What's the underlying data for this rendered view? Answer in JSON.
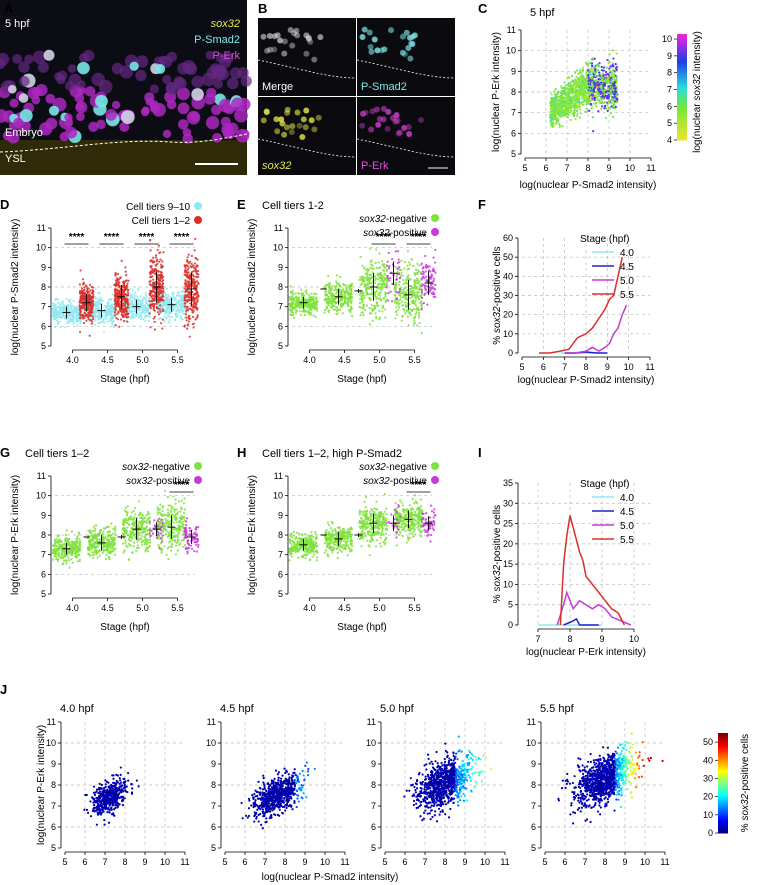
{
  "panels": {
    "A": {
      "letter": "A",
      "stage": "5 hpf",
      "labels": [
        "sox32",
        "P-Smad2",
        "P-Erk"
      ],
      "embryo": "Embryo",
      "ysl": "YSL"
    },
    "B": {
      "letter": "B",
      "labels": [
        "Merge",
        "P-Smad2",
        "sox32",
        "P-Erk"
      ]
    },
    "C": {
      "letter": "C",
      "title": "5 hpf",
      "xlabel": "log(nuclear P-Smad2 intensity)",
      "ylabel": "log(nuclear P-Erk intensity)",
      "colorbar_label": "log(nuclear sox32 intensity)"
    },
    "D": {
      "letter": "D",
      "legend": [
        "Cell tiers 9–10",
        "Cell tiers 1–2"
      ],
      "xlabel": "Stage (hpf)",
      "ylabel": "log(nuclear P-Smad2 intensity)"
    },
    "E": {
      "letter": "E",
      "title": "Cell tiers 1-2",
      "legend": [
        "sox32-negative",
        "sox32-positive"
      ],
      "xlabel": "Stage (hpf)",
      "ylabel": "log(nuclear P-Smad2 intensity)"
    },
    "F": {
      "letter": "F",
      "legend_title": "Stage (hpf)",
      "xlabel": "log(nuclear P-Smad2 intensity)",
      "ylabel": "% sox32-positive cells"
    },
    "G": {
      "letter": "G",
      "title": "Cell tiers 1–2",
      "legend": [
        "sox32-negative",
        "sox32-positive"
      ],
      "xlabel": "Stage (hpf)",
      "ylabel": "log(nuclear P-Erk intensity)"
    },
    "H": {
      "letter": "H",
      "title": "Cell tiers 1–2, high P-Smad2",
      "legend": [
        "sox32-negative",
        "sox32-positive"
      ],
      "xlabel": "Stage (hpf)",
      "ylabel": "log(nuclear P-Erk intensity)"
    },
    "I": {
      "letter": "I",
      "legend_title": "Stage (hpf)",
      "xlabel": "log(nuclear P-Erk intensity)",
      "ylabel": "% sox32-positive cells"
    },
    "J": {
      "letter": "J",
      "titles": [
        "4.0 hpf",
        "4.5 hpf",
        "5.0 hpf",
        "5.5 hpf"
      ],
      "xlabel": "log(nuclear P-Smad2 intensity)",
      "ylabel": "log(nuclear P-Erk intensity)",
      "colorbar_label": "% sox32-positive cells"
    }
  },
  "significance": "****",
  "colors": {
    "cyan": "#8fe8f0",
    "red": "#d9302a",
    "green": "#7ee23a",
    "magenta": "#c83bd8",
    "darkblue": "#2222cc",
    "blue": "#3344ee"
  },
  "chart_data": [
    {
      "id": "C",
      "type": "scatter",
      "xlim": [
        5,
        11
      ],
      "ylim": [
        5,
        11
      ],
      "xticks": [
        "5",
        "6",
        "7",
        "8",
        "9",
        "10",
        "11"
      ],
      "yticks": [
        "5",
        "6",
        "7",
        "8",
        "9",
        "10",
        "11"
      ],
      "colorbar_ticks": [
        "4",
        "5",
        "6",
        "7",
        "8",
        "9",
        "10"
      ],
      "colorbar_range": [
        4,
        10.3
      ]
    },
    {
      "id": "D",
      "type": "scatter",
      "categories": [
        "4.0",
        "4.5",
        "5.0",
        "5.5"
      ],
      "ylim": [
        5,
        11
      ],
      "yticks": [
        "5",
        "6",
        "7",
        "8",
        "9",
        "10",
        "11"
      ],
      "series": [
        {
          "name": "Cell tiers 9–10",
          "color": "#8fe8f0",
          "medians": [
            6.7,
            6.8,
            7.0,
            7.1
          ]
        },
        {
          "name": "Cell tiers 1–2",
          "color": "#d9302a",
          "medians": [
            7.2,
            7.5,
            8.0,
            7.9
          ]
        }
      ]
    },
    {
      "id": "E",
      "type": "scatter",
      "categories": [
        "4.0",
        "4.5",
        "5.0",
        "5.5"
      ],
      "ylim": [
        5,
        11
      ],
      "yticks": [
        "5",
        "6",
        "7",
        "8",
        "9",
        "10",
        "11"
      ],
      "series": [
        {
          "name": "sox32-negative",
          "color": "#7ee23a",
          "medians": [
            7.2,
            7.5,
            8.0,
            7.6
          ]
        },
        {
          "name": "sox32-positive",
          "color": "#c83bd8",
          "medians": [
            null,
            7.8,
            8.7,
            8.2
          ]
        }
      ]
    },
    {
      "id": "F",
      "type": "line",
      "xlim": [
        5,
        11
      ],
      "ylim": [
        0,
        60
      ],
      "xticks": [
        "5",
        "6",
        "7",
        "8",
        "9",
        "10",
        "11"
      ],
      "yticks": [
        "0",
        "10",
        "20",
        "30",
        "40",
        "50",
        "60"
      ],
      "series": [
        {
          "name": "4.0",
          "color": "#8fe8f0",
          "x": [
            6.8,
            7.5,
            8.0,
            8.8
          ],
          "y": [
            0,
            0,
            0,
            0
          ]
        },
        {
          "name": "4.5",
          "color": "#2222cc",
          "x": [
            7.0,
            7.5,
            8.0,
            8.5,
            9.0
          ],
          "y": [
            0,
            0,
            0.5,
            0,
            0
          ]
        },
        {
          "name": "5.0",
          "color": "#c83bd8",
          "x": [
            7.0,
            7.5,
            8.0,
            8.3,
            8.6,
            8.9,
            9.1,
            9.3,
            9.5,
            9.7,
            9.9
          ],
          "y": [
            0,
            0,
            1,
            3,
            1,
            3,
            5,
            10,
            13,
            20,
            25
          ]
        },
        {
          "name": "5.5",
          "color": "#d9302a",
          "x": [
            5.8,
            6.3,
            6.8,
            7.2,
            7.6,
            8.0,
            8.3,
            8.6,
            8.9,
            9.1,
            9.3,
            9.5,
            9.7
          ],
          "y": [
            0,
            0,
            1,
            2,
            8,
            10,
            13,
            18,
            23,
            28,
            30,
            40,
            50
          ]
        }
      ]
    },
    {
      "id": "G",
      "type": "scatter",
      "categories": [
        "4.0",
        "4.5",
        "5.0",
        "5.5"
      ],
      "ylim": [
        5,
        11
      ],
      "yticks": [
        "5",
        "6",
        "7",
        "8",
        "9",
        "10",
        "11"
      ],
      "series": [
        {
          "name": "sox32-negative",
          "color": "#7ee23a",
          "medians": [
            7.3,
            7.6,
            8.3,
            8.4
          ]
        },
        {
          "name": "sox32-positive",
          "color": "#c83bd8",
          "medians": [
            null,
            7.9,
            8.3,
            7.9
          ]
        }
      ]
    },
    {
      "id": "H",
      "type": "scatter",
      "categories": [
        "4.0",
        "4.5",
        "5.0",
        "5.5"
      ],
      "ylim": [
        5,
        11
      ],
      "yticks": [
        "5",
        "6",
        "7",
        "8",
        "9",
        "10",
        "11"
      ],
      "series": [
        {
          "name": "sox32-negative",
          "color": "#7ee23a",
          "medians": [
            7.5,
            7.8,
            8.6,
            8.8
          ]
        },
        {
          "name": "sox32-positive",
          "color": "#c83bd8",
          "medians": [
            null,
            8.0,
            8.6,
            8.6
          ]
        }
      ]
    },
    {
      "id": "I",
      "type": "line",
      "xlim": [
        6,
        11
      ],
      "ylim": [
        0,
        35
      ],
      "xticks": [
        "7",
        "8",
        "9",
        "10"
      ],
      "yticks": [
        "0",
        "5",
        "10",
        "15",
        "20",
        "25",
        "30",
        "35"
      ],
      "series": [
        {
          "name": "4.0",
          "color": "#8fe8f0",
          "x": [
            7.0,
            7.5,
            8.0,
            8.5,
            9.0
          ],
          "y": [
            0,
            0,
            0,
            0,
            0
          ]
        },
        {
          "name": "4.5",
          "color": "#2222cc",
          "x": [
            7.8,
            8.1,
            8.2,
            8.3,
            8.6,
            8.9
          ],
          "y": [
            0,
            1,
            1.5,
            0,
            0,
            0
          ]
        },
        {
          "name": "5.0",
          "color": "#c83bd8",
          "x": [
            7.6,
            7.8,
            7.9,
            8.0,
            8.1,
            8.3,
            8.5,
            8.7,
            8.9,
            9.1,
            9.3,
            9.6,
            9.9
          ],
          "y": [
            0,
            5,
            8,
            6,
            4,
            6,
            5,
            4,
            5,
            4,
            2,
            1,
            0
          ]
        },
        {
          "name": "5.5",
          "color": "#d9302a",
          "x": [
            7.7,
            7.8,
            7.9,
            8.0,
            8.1,
            8.2,
            8.3,
            8.4,
            8.5,
            8.7,
            8.9,
            9.1,
            9.3,
            9.5,
            9.7
          ],
          "y": [
            0,
            15,
            22,
            27,
            24,
            21,
            18,
            16,
            12,
            10,
            8,
            6,
            4,
            3,
            0
          ]
        }
      ]
    },
    {
      "id": "J",
      "type": "scatter",
      "xlim": [
        5,
        11
      ],
      "ylim": [
        5,
        11
      ],
      "xticks": [
        "5",
        "6",
        "7",
        "8",
        "9",
        "10",
        "11"
      ],
      "yticks": [
        "5",
        "6",
        "7",
        "8",
        "9",
        "10",
        "11"
      ],
      "colorbar_ticks": [
        "0",
        "10",
        "20",
        "30",
        "40",
        "50"
      ],
      "colorbar_range": [
        0,
        55
      ]
    }
  ]
}
